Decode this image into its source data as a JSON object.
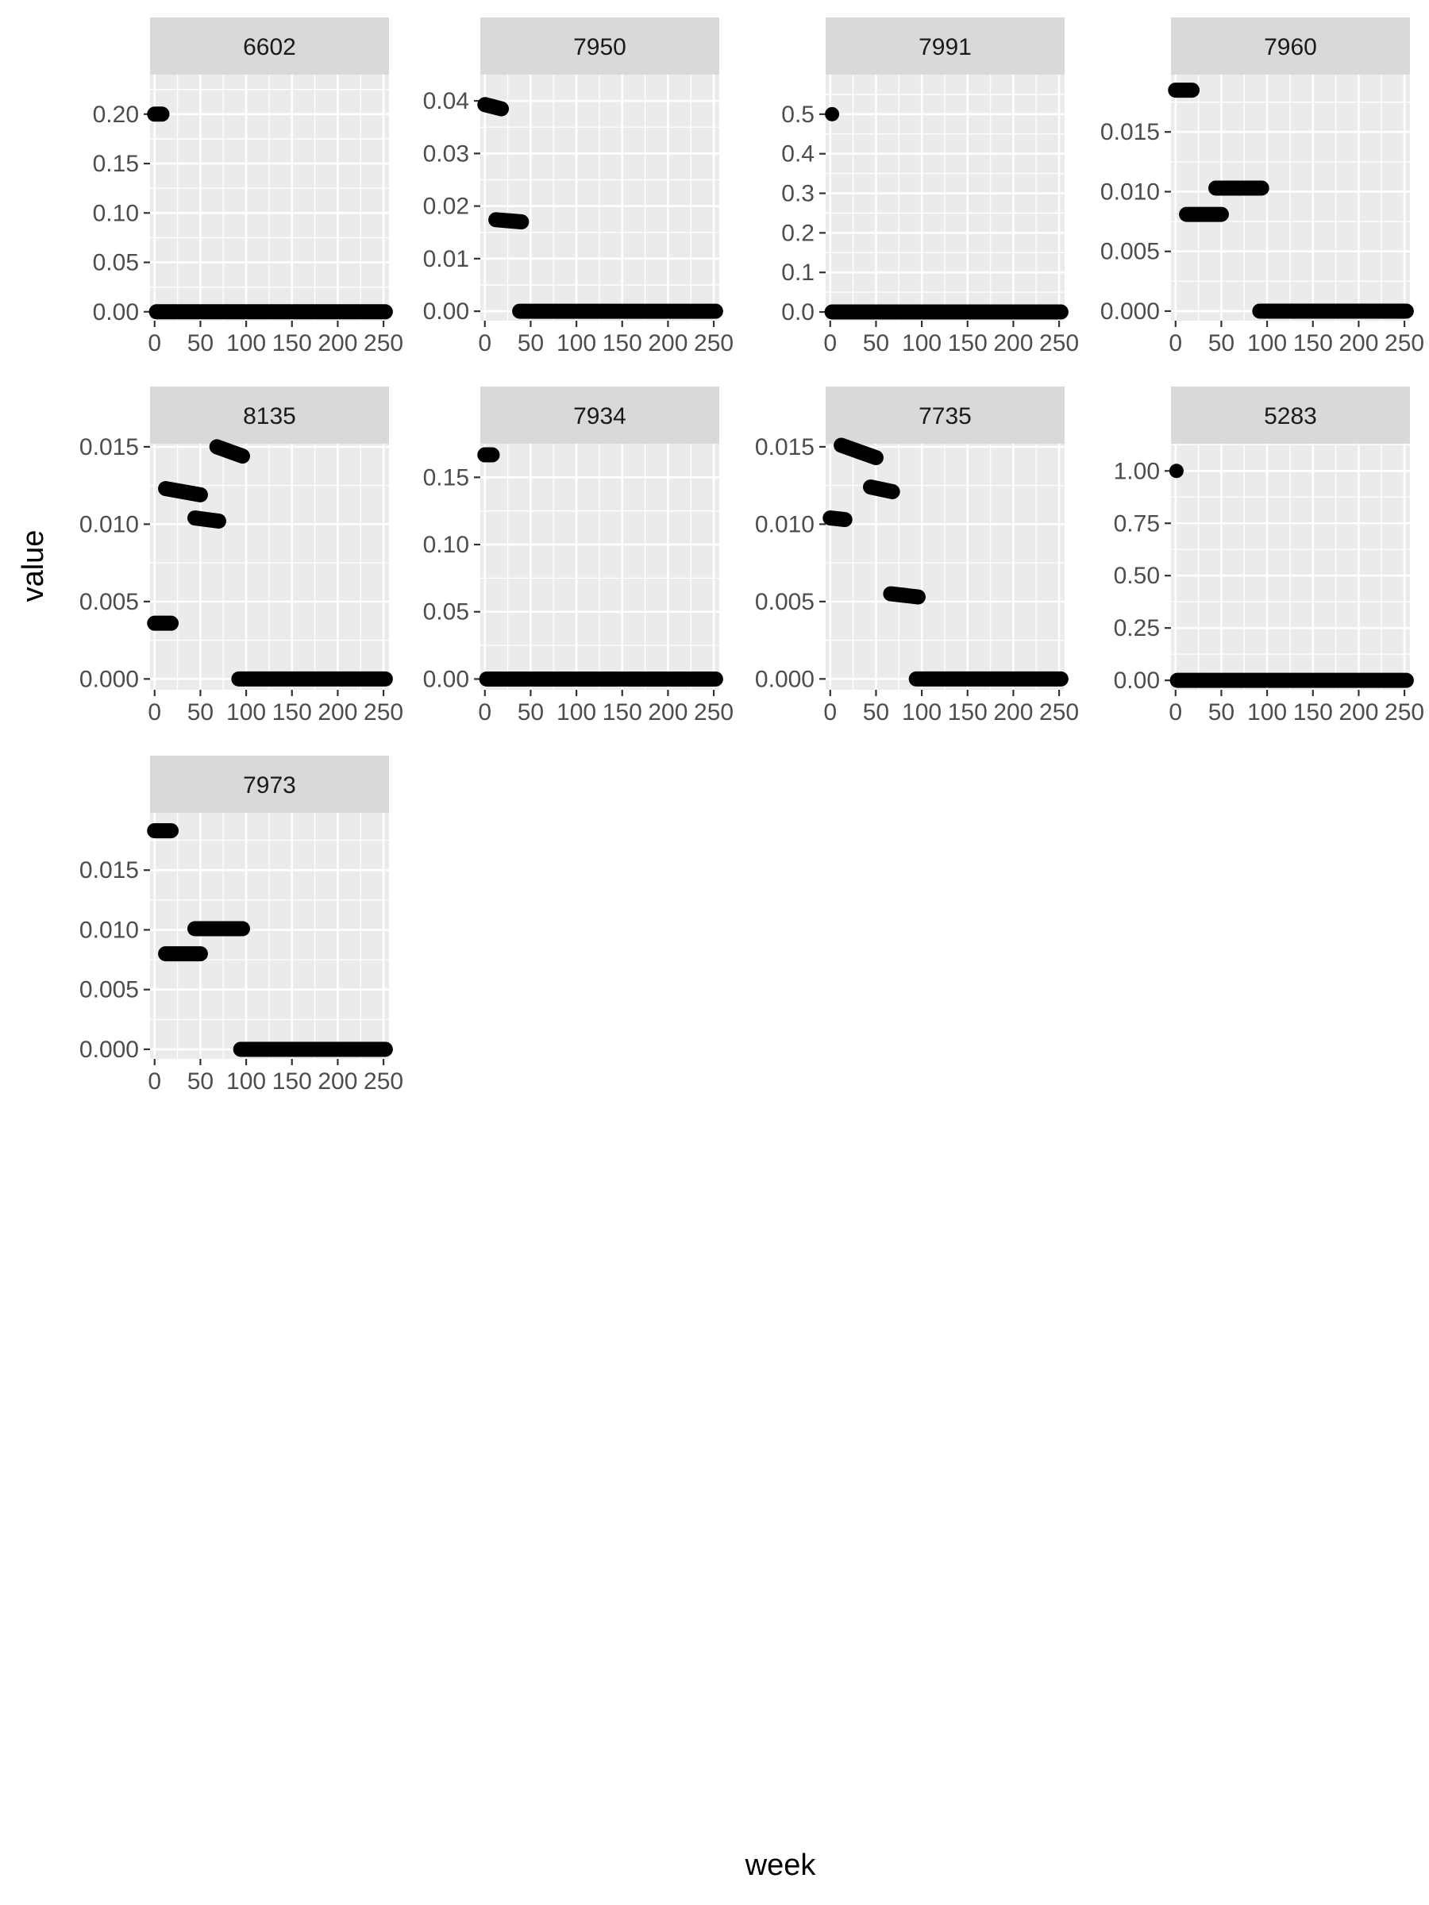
{
  "chart_data": {
    "type": "scatter",
    "xlabel": "week",
    "ylabel": "value",
    "x_ticks": [
      0,
      50,
      100,
      150,
      200,
      250
    ],
    "x_tick_labels": [
      "0",
      "50",
      "100",
      "150",
      "200",
      "250"
    ],
    "xlim": [
      -5,
      256
    ],
    "grid": true,
    "point_color": "#000000",
    "panel_bg": "#ebebeb",
    "strip_bg": "#d9d9d9",
    "panels": [
      {
        "title": "6602",
        "ylim": [
          -0.009,
          0.24
        ],
        "y_ticks": [
          0,
          0.05,
          0.1,
          0.15,
          0.2
        ],
        "y_tick_labels": [
          "0.00",
          "0.05",
          "0.10",
          "0.15",
          "0.20"
        ],
        "segments": [
          {
            "x": [
              0,
              8
            ],
            "y": [
              0.2,
              0.2
            ]
          },
          {
            "x": [
              2,
              252
            ],
            "y": [
              0,
              0
            ]
          }
        ]
      },
      {
        "title": "7950",
        "ylim": [
          -0.0018,
          0.045
        ],
        "y_ticks": [
          0,
          0.01,
          0.02,
          0.03,
          0.04
        ],
        "y_tick_labels": [
          "0.00",
          "0.01",
          "0.02",
          "0.03",
          "0.04"
        ],
        "segments": [
          {
            "x": [
              0,
              18
            ],
            "y": [
              0.0393,
              0.0385
            ]
          },
          {
            "x": [
              12,
              40
            ],
            "y": [
              0.0174,
              0.017
            ]
          },
          {
            "x": [
              38,
              252
            ],
            "y": [
              0,
              0
            ]
          }
        ]
      },
      {
        "title": "7991",
        "ylim": [
          -0.022,
          0.6
        ],
        "y_ticks": [
          0,
          0.1,
          0.2,
          0.3,
          0.4,
          0.5
        ],
        "y_tick_labels": [
          "0.0",
          "0.1",
          "0.2",
          "0.3",
          "0.4",
          "0.5"
        ],
        "segments": [
          {
            "x": [
              2,
              2
            ],
            "y": [
              0.5,
              0.5
            ]
          },
          {
            "x": [
              2,
              252
            ],
            "y": [
              0,
              0
            ]
          }
        ]
      },
      {
        "title": "7960",
        "ylim": [
          -0.0008,
          0.0198
        ],
        "y_ticks": [
          0,
          0.005,
          0.01,
          0.015
        ],
        "y_tick_labels": [
          "0.000",
          "0.005",
          "0.010",
          "0.015"
        ],
        "segments": [
          {
            "x": [
              0,
              18
            ],
            "y": [
              0.0185,
              0.0185
            ]
          },
          {
            "x": [
              12,
              50
            ],
            "y": [
              0.0081,
              0.0081
            ]
          },
          {
            "x": [
              44,
              94
            ],
            "y": [
              0.0103,
              0.0103
            ]
          },
          {
            "x": [
              92,
              252
            ],
            "y": [
              0,
              0
            ]
          }
        ]
      },
      {
        "title": "8135",
        "ylim": [
          -0.0007,
          0.0152
        ],
        "y_ticks": [
          0,
          0.005,
          0.01,
          0.015
        ],
        "y_tick_labels": [
          "0.000",
          "0.005",
          "0.010",
          "0.015"
        ],
        "segments": [
          {
            "x": [
              0,
              18
            ],
            "y": [
              0.0036,
              0.0036
            ]
          },
          {
            "x": [
              12,
              50
            ],
            "y": [
              0.0123,
              0.0119
            ]
          },
          {
            "x": [
              44,
              70
            ],
            "y": [
              0.0104,
              0.0102
            ]
          },
          {
            "x": [
              68,
              96
            ],
            "y": [
              0.015,
              0.0144
            ]
          },
          {
            "x": [
              92,
              252
            ],
            "y": [
              0,
              0
            ]
          }
        ]
      },
      {
        "title": "7934",
        "ylim": [
          -0.008,
          0.175
        ],
        "y_ticks": [
          0,
          0.05,
          0.1,
          0.15
        ],
        "y_tick_labels": [
          "0.00",
          "0.05",
          "0.10",
          "0.15"
        ],
        "segments": [
          {
            "x": [
              0,
              8
            ],
            "y": [
              0.1667,
              0.1667
            ]
          },
          {
            "x": [
              2,
              252
            ],
            "y": [
              0,
              0
            ]
          }
        ]
      },
      {
        "title": "7735",
        "ylim": [
          -0.0007,
          0.0152
        ],
        "y_ticks": [
          0,
          0.005,
          0.01,
          0.015
        ],
        "y_tick_labels": [
          "0.000",
          "0.005",
          "0.010",
          "0.015"
        ],
        "segments": [
          {
            "x": [
              0,
              16
            ],
            "y": [
              0.0104,
              0.0103
            ]
          },
          {
            "x": [
              12,
              50
            ],
            "y": [
              0.0151,
              0.0143
            ]
          },
          {
            "x": [
              44,
              68
            ],
            "y": [
              0.0124,
              0.0121
            ]
          },
          {
            "x": [
              66,
              96
            ],
            "y": [
              0.0055,
              0.0053
            ]
          },
          {
            "x": [
              94,
              252
            ],
            "y": [
              0,
              0
            ]
          }
        ]
      },
      {
        "title": "5283",
        "ylim": [
          -0.045,
          1.13
        ],
        "y_ticks": [
          0,
          0.25,
          0.5,
          0.75,
          1.0
        ],
        "y_tick_labels": [
          "0.00",
          "0.25",
          "0.50",
          "0.75",
          "1.00"
        ],
        "segments": [
          {
            "x": [
              1,
              1
            ],
            "y": [
              1.0,
              1.0
            ]
          },
          {
            "x": [
              2,
              252
            ],
            "y": [
              0,
              0
            ]
          }
        ]
      },
      {
        "title": "7973",
        "ylim": [
          -0.0008,
          0.0198
        ],
        "y_ticks": [
          0,
          0.005,
          0.01,
          0.015
        ],
        "y_tick_labels": [
          "0.000",
          "0.005",
          "0.010",
          "0.015"
        ],
        "segments": [
          {
            "x": [
              0,
              18
            ],
            "y": [
              0.0183,
              0.0183
            ]
          },
          {
            "x": [
              12,
              50
            ],
            "y": [
              0.008,
              0.008
            ]
          },
          {
            "x": [
              44,
              96
            ],
            "y": [
              0.0101,
              0.0101
            ]
          },
          {
            "x": [
              94,
              252
            ],
            "y": [
              0,
              0
            ]
          }
        ]
      }
    ]
  }
}
